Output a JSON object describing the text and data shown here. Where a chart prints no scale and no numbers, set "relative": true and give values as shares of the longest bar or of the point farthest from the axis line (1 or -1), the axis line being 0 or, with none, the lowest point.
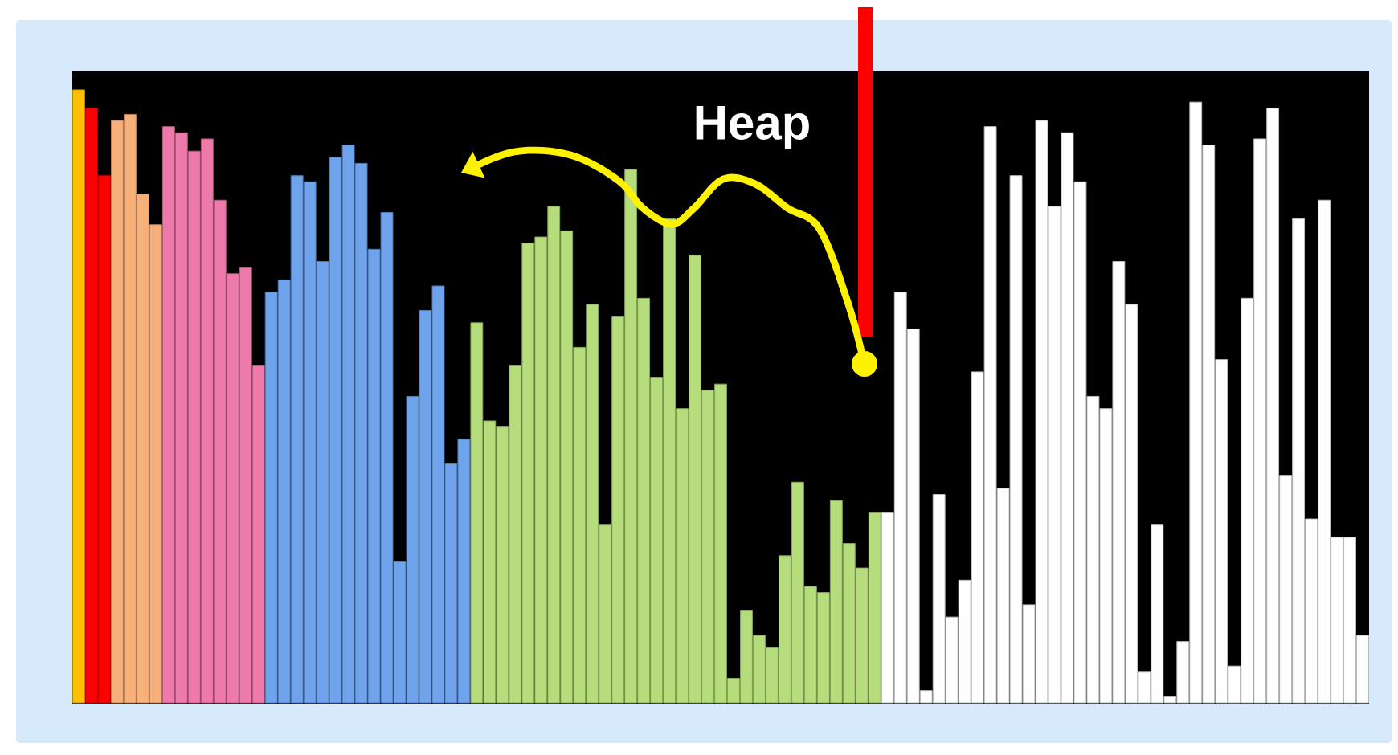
{
  "chart_data": {
    "type": "bar",
    "relative": true,
    "categories": [
      null,
      null,
      null,
      null,
      null,
      null,
      null,
      null,
      null,
      null,
      null,
      null,
      null,
      null,
      null,
      null,
      null,
      null,
      null,
      null,
      null,
      null,
      null,
      null,
      null,
      null,
      null,
      null,
      null,
      null,
      null,
      null,
      null,
      null,
      null,
      null,
      null,
      null,
      null,
      null,
      null,
      null,
      null,
      null,
      null,
      null,
      null,
      null,
      null,
      null,
      null,
      null,
      null,
      null,
      null,
      null,
      null,
      null,
      null,
      null,
      null,
      null,
      null,
      null,
      null,
      null,
      null,
      null,
      null,
      null,
      null,
      null,
      null,
      null,
      null,
      null,
      null,
      null,
      null,
      null,
      null,
      null,
      null,
      null,
      null,
      null,
      null,
      null,
      null,
      null,
      null,
      null,
      null,
      null,
      null,
      null,
      null,
      null,
      null,
      null,
      null
    ],
    "values": [
      1.0,
      0.97,
      0.86,
      0.95,
      0.96,
      0.83,
      0.78,
      0.94,
      0.93,
      0.9,
      0.92,
      0.82,
      0.7,
      0.71,
      0.55,
      0.67,
      0.69,
      0.86,
      0.85,
      0.72,
      0.89,
      0.91,
      0.88,
      0.74,
      0.8,
      0.23,
      0.5,
      0.64,
      0.68,
      0.39,
      0.43,
      0.62,
      0.46,
      0.45,
      0.55,
      0.75,
      0.76,
      0.81,
      0.77,
      0.58,
      0.65,
      0.29,
      0.63,
      0.87,
      0.66,
      0.53,
      0.79,
      0.48,
      0.73,
      0.51,
      0.52,
      0.04,
      0.15,
      0.11,
      0.09,
      0.24,
      0.36,
      0.19,
      0.18,
      0.33,
      0.26,
      0.22,
      0.31,
      0.31,
      0.67,
      0.61,
      0.02,
      0.34,
      0.14,
      0.2,
      0.54,
      0.94,
      0.35,
      0.86,
      0.16,
      0.95,
      0.81,
      0.93,
      0.85,
      0.5,
      0.48,
      0.72,
      0.65,
      0.05,
      0.29,
      0.01,
      0.1,
      0.98,
      0.91,
      0.56,
      0.06,
      0.66,
      0.92,
      0.97,
      0.37,
      0.79,
      0.3,
      0.82,
      0.27,
      0.27,
      0.11
    ],
    "colors": [
      "#ffc000",
      "#ff0000",
      "#ff0000",
      "#f8b07a",
      "#f8b07a",
      "#f8b07a",
      "#f8b07a",
      "#ee7aac",
      "#ee7aac",
      "#ee7aac",
      "#ee7aac",
      "#ee7aac",
      "#ee7aac",
      "#ee7aac",
      "#ee7aac",
      "#6fa4ec",
      "#6fa4ec",
      "#6fa4ec",
      "#6fa4ec",
      "#6fa4ec",
      "#6fa4ec",
      "#6fa4ec",
      "#6fa4ec",
      "#6fa4ec",
      "#6fa4ec",
      "#6fa4ec",
      "#6fa4ec",
      "#6fa4ec",
      "#6fa4ec",
      "#6fa4ec",
      "#6fa4ec",
      "#b5dd7b",
      "#b5dd7b",
      "#b5dd7b",
      "#b5dd7b",
      "#b5dd7b",
      "#b5dd7b",
      "#b5dd7b",
      "#b5dd7b",
      "#b5dd7b",
      "#b5dd7b",
      "#b5dd7b",
      "#b5dd7b",
      "#b5dd7b",
      "#b5dd7b",
      "#b5dd7b",
      "#b5dd7b",
      "#b5dd7b",
      "#b5dd7b",
      "#b5dd7b",
      "#b5dd7b",
      "#b5dd7b",
      "#b5dd7b",
      "#b5dd7b",
      "#b5dd7b",
      "#b5dd7b",
      "#b5dd7b",
      "#b5dd7b",
      "#b5dd7b",
      "#b5dd7b",
      "#b5dd7b",
      "#b5dd7b",
      "#b5dd7b",
      "#ffffff",
      "#ffffff",
      "#ffffff",
      "#ffffff",
      "#ffffff",
      "#ffffff",
      "#ffffff",
      "#ffffff",
      "#ffffff",
      "#ffffff",
      "#ffffff",
      "#ffffff",
      "#ffffff",
      "#ffffff",
      "#ffffff",
      "#ffffff",
      "#ffffff",
      "#ffffff",
      "#ffffff",
      "#ffffff",
      "#ffffff",
      "#ffffff",
      "#ffffff",
      "#ffffff",
      "#ffffff",
      "#ffffff",
      "#ffffff",
      "#ffffff",
      "#ffffff",
      "#ffffff",
      "#ffffff",
      "#ffffff",
      "#ffffff",
      "#ffffff",
      "#ffffff",
      "#ffffff",
      "#ffffff",
      "#ffffff"
    ],
    "annotations": [
      "Heap"
    ]
  }
}
